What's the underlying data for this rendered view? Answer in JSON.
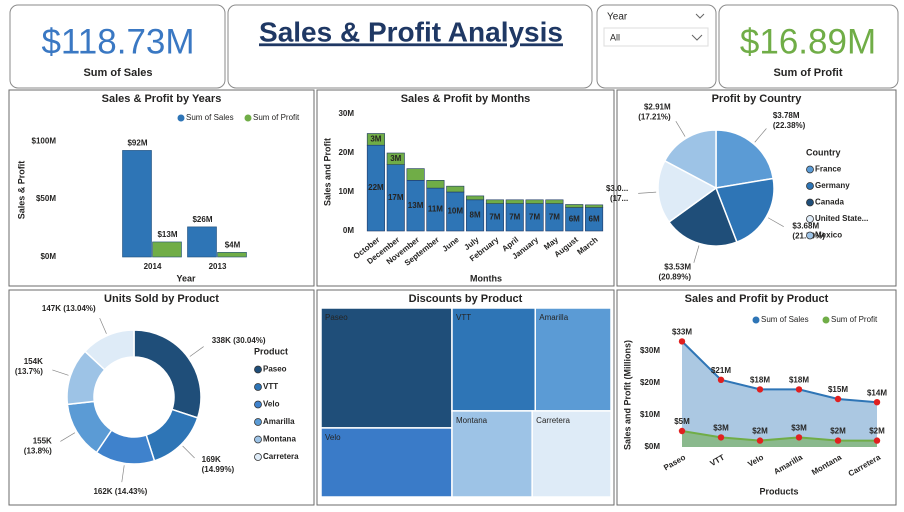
{
  "header": {
    "title": "Sales & Profit Analysis"
  },
  "cards": [
    {
      "value": "$118.73M",
      "label": "Sum of  Sales"
    },
    {
      "value": "$16.89M",
      "label": "Sum of Profit"
    }
  ],
  "slicer": {
    "label": "Year",
    "value": "All"
  },
  "chart_data": [
    {
      "type": "bar",
      "title": "Sales & Profit by Years",
      "categories": [
        "2014",
        "2013"
      ],
      "series": [
        {
          "name": "Sum of  Sales",
          "color": "#2e75b6",
          "values": [
            92,
            26
          ],
          "value_labels": [
            "$92M",
            "$26M"
          ]
        },
        {
          "name": "Sum of Profit",
          "color": "#70ad47",
          "values": [
            13,
            4
          ],
          "value_labels": [
            "$13M",
            "$4M"
          ]
        }
      ],
      "ylim": [
        0,
        120
      ],
      "yticks": [
        {
          "value": 0,
          "label": "$0M"
        },
        {
          "value": 50,
          "label": "$50M"
        },
        {
          "value": 100,
          "label": "$100M"
        }
      ],
      "xlabel": "Year",
      "ylabel": "Sales & Profit",
      "legend": "top-right"
    },
    {
      "type": "stacked_bar",
      "title": "Sales & Profit by Months",
      "categories": [
        "October",
        "December",
        "November",
        "September",
        "June",
        "July",
        "February",
        "April",
        "January",
        "May",
        "August",
        "March"
      ],
      "series": [
        {
          "color": "#2e75b6",
          "values": [
            22,
            17,
            13,
            11,
            10,
            8,
            7,
            7,
            7,
            7,
            6,
            6
          ],
          "value_labels": [
            "22M",
            "17M",
            "13M",
            "11M",
            "10M",
            "8M",
            "7M",
            "7M",
            "7M",
            "7M",
            "6M",
            "6M"
          ]
        },
        {
          "color": "#70ad47",
          "values": [
            3,
            3,
            3,
            2,
            1.5,
            1,
            1,
            1,
            1,
            1,
            0.8,
            0.7
          ],
          "value_labels": [
            "3M",
            "3M",
            null,
            null,
            null,
            null,
            null,
            null,
            null,
            null,
            null,
            null
          ]
        }
      ],
      "ylim": [
        0,
        30
      ],
      "yticks": [
        {
          "value": 0,
          "label": "0M"
        },
        {
          "value": 10,
          "label": "10M"
        },
        {
          "value": 20,
          "label": "20M"
        },
        {
          "value": 30,
          "label": "30M"
        }
      ],
      "xlabel": "Months",
      "ylabel": "Sales and Profit"
    },
    {
      "type": "pie",
      "title": "Profit by Country",
      "legend_title": "Country",
      "categories": [
        "France",
        "Germany",
        "Canada",
        "United State...",
        "Mexico"
      ],
      "values": [
        3.78,
        3.68,
        3.53,
        3.0,
        2.91
      ],
      "value_labels": [
        [
          "$3.78M",
          "(22.38%)"
        ],
        [
          "$3.68M",
          "(21.79%)"
        ],
        [
          "$3.53M",
          "(20.89%)"
        ],
        [
          "$3.0...",
          "(17..."
        ],
        [
          "$2.91M",
          "(17.21%)"
        ]
      ],
      "colors": [
        "#5b9bd5",
        "#2e75b6",
        "#1f4e79",
        "#deebf7",
        "#9dc3e6"
      ]
    },
    {
      "type": "donut",
      "title": "Units Sold by Product",
      "legend_title": "Product",
      "categories": [
        "Paseo",
        "VTT",
        "Velo",
        "Amarilla",
        "Montana",
        "Carretera"
      ],
      "values": [
        338,
        169,
        162,
        155,
        154,
        147
      ],
      "value_labels": [
        [
          "338K (30.04%)"
        ],
        [
          "169K",
          "(14.99%)"
        ],
        [
          "162K (14.43%)"
        ],
        [
          "155K",
          "(13.8%)"
        ],
        [
          "154K",
          "(13.7%)"
        ],
        [
          "147K (13.04%)"
        ]
      ],
      "colors": [
        "#1f4e79",
        "#2e75b6",
        "#3f82cc",
        "#5b9bd5",
        "#9dc3e6",
        "#deebf7"
      ]
    },
    {
      "type": "treemap",
      "title": "Discounts by Product",
      "categories": [
        "Paseo",
        "Velo",
        "VTT",
        "Amarilla",
        "Montana",
        "Carretera"
      ],
      "values": [
        2.64,
        1.52,
        1.44,
        1.31,
        1.16,
        1.14
      ],
      "colors": [
        "#1f4e79",
        "#3a7bc8",
        "#2e75b6",
        "#5b9bd5",
        "#9dc3e6",
        "#deebf7"
      ]
    },
    {
      "type": "area_line",
      "title": "Sales and Profit by Product",
      "categories": [
        "Paseo",
        "VTT",
        "Velo",
        "Amarilla",
        "Montana",
        "Carretera"
      ],
      "series": [
        {
          "name": "Sum of  Sales",
          "color": "#2e75b6",
          "values": [
            33,
            21,
            18,
            18,
            15,
            14
          ],
          "value_labels": [
            "$33M",
            "$21M",
            "$18M",
            "$18M",
            "$15M",
            "$14M"
          ]
        },
        {
          "name": "Sum of Profit",
          "color": "#70ad47",
          "values": [
            5,
            3,
            2,
            3,
            2,
            2
          ],
          "value_labels": [
            "$5M",
            "$3M",
            "$2M",
            "$3M",
            "$2M",
            "$2M"
          ]
        }
      ],
      "ylim": [
        0,
        35
      ],
      "yticks": [
        {
          "value": 0,
          "label": "$0M"
        },
        {
          "value": 10,
          "label": "$10M"
        },
        {
          "value": 20,
          "label": "$20M"
        },
        {
          "value": 30,
          "label": "$30M"
        }
      ],
      "xlabel": "Products",
      "ylabel": "Sales and Profit (Millions)",
      "marker_color": "#e02020",
      "legend": "top-right"
    }
  ]
}
